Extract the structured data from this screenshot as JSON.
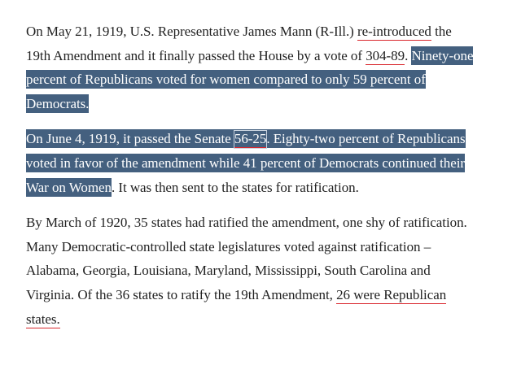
{
  "article": {
    "p1": {
      "t1": "On May 21, 1919, U.S. Representative James Mann (R-Ill.) ",
      "link_reintroduced": "re-introduced",
      "t2": " the 19th Amendment and it finally passed the House by a vote of ",
      "link_vote_house": "304-89",
      "t3": ". ",
      "highlight": "Ninety-one percent of Republicans voted for women compared to only 59 percent of Democrats."
    },
    "p2": {
      "highlight_a": "On June 4, 1919, it passed the Senate ",
      "link_vote_senate": "56-25",
      "highlight_b": ". Eighty-two percent of Republicans voted in favor of the amendment while 41 percent of Democrats continued their War on Women",
      "t1": ". It was then sent to the states for ratification."
    },
    "p3": {
      "t1": "By March of 1920, 35 states had ratified the amendment, one shy of ratification. Many Democratic-controlled state legislatures voted against ratification – Alabama, Georgia, Louisiana, Maryland, Mississippi, South Carolina and Virginia. Of the 36 states to ratify the 19th Amendment, ",
      "link_republican_states": "26 were Republican states."
    }
  },
  "colors": {
    "highlight_bg": "#44607f",
    "link_underline": "#d9262c",
    "text": "#222222"
  }
}
